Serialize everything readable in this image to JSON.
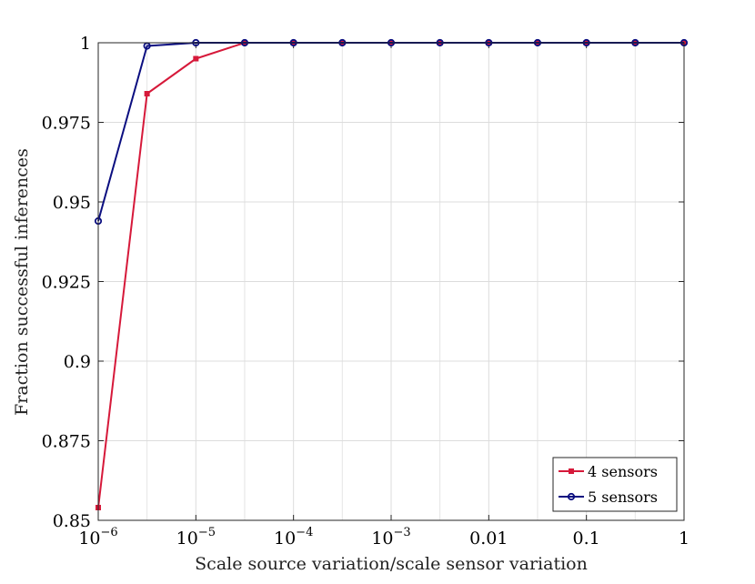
{
  "chart_data": {
    "type": "line",
    "xscale": "log",
    "xlim": [
      1e-06,
      1
    ],
    "ylim": [
      0.85,
      1
    ],
    "grid": true,
    "legend_placement": "bottom-right",
    "xlabel": "Scale source variation/scale sensor variation",
    "ylabel": "Fraction successful inferences",
    "x_ticks": [
      {
        "value": 1e-06,
        "base": "10",
        "exp": "−6"
      },
      {
        "value": 1e-05,
        "base": "10",
        "exp": "−5"
      },
      {
        "value": 0.0001,
        "base": "10",
        "exp": "−4"
      },
      {
        "value": 0.001,
        "base": "10",
        "exp": "−3"
      },
      {
        "value": 0.01,
        "label": "0.01"
      },
      {
        "value": 0.1,
        "label": "0.1"
      },
      {
        "value": 1,
        "label": "1"
      }
    ],
    "y_ticks": [
      {
        "value": 0.85,
        "label": "0.85"
      },
      {
        "value": 0.875,
        "label": "0.875"
      },
      {
        "value": 0.9,
        "label": "0.9"
      },
      {
        "value": 0.925,
        "label": "0.925"
      },
      {
        "value": 0.95,
        "label": "0.95"
      },
      {
        "value": 0.975,
        "label": "0.975"
      },
      {
        "value": 1,
        "label": "1"
      }
    ],
    "x": [
      1e-06,
      3.16e-06,
      1e-05,
      3.16e-05,
      0.0001,
      0.000316,
      0.001,
      0.00316,
      0.01,
      0.0316,
      0.1,
      0.316,
      1
    ],
    "series": [
      {
        "name": "4 sensors",
        "color": "#d6193a",
        "marker": "square",
        "values": [
          0.854,
          0.984,
          0.995,
          1,
          1,
          1,
          1,
          1,
          1,
          1,
          1,
          1,
          1
        ]
      },
      {
        "name": "5 sensors",
        "color": "#0b0e80",
        "marker": "circle",
        "values": [
          0.944,
          0.999,
          1,
          1,
          1,
          1,
          1,
          1,
          1,
          1,
          1,
          1,
          1
        ]
      }
    ]
  }
}
